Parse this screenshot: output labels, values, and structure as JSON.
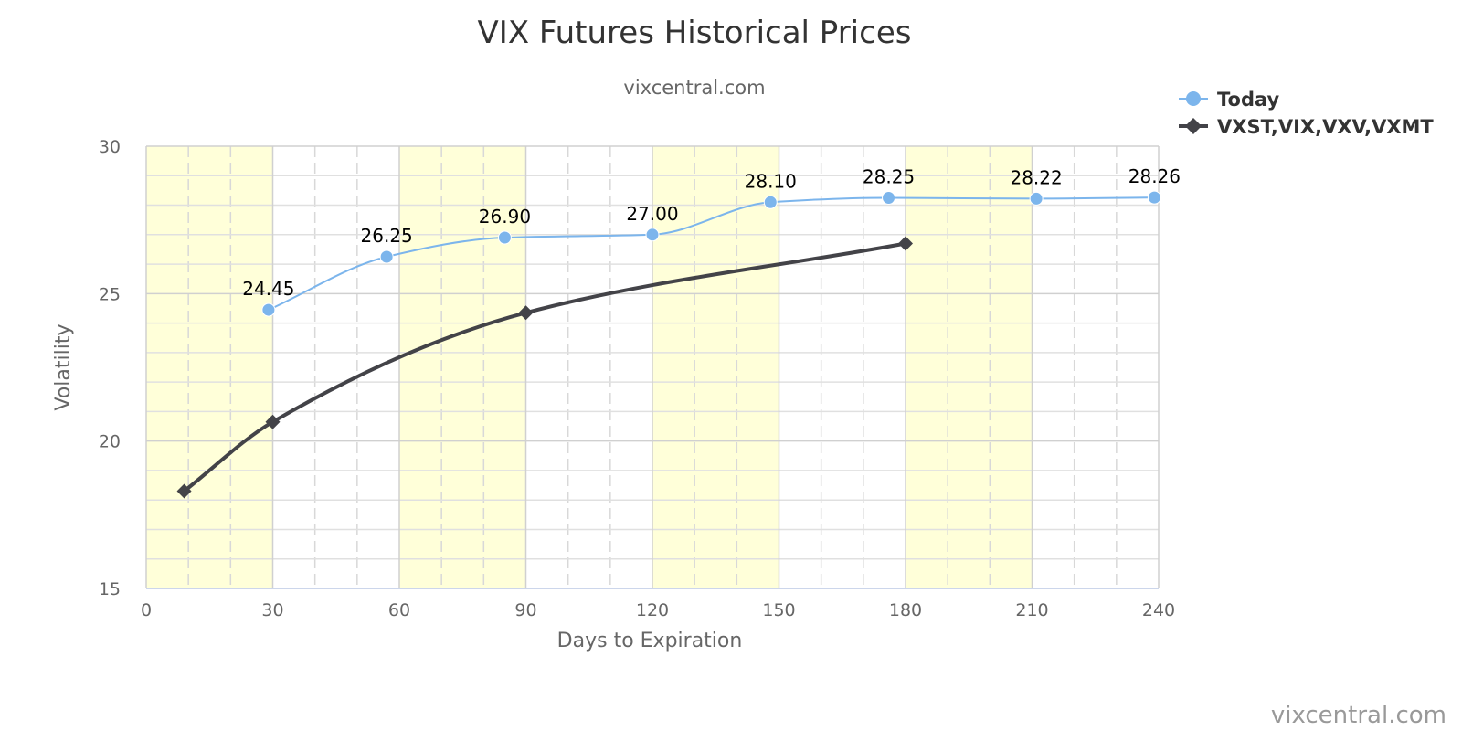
{
  "chart_data": {
    "type": "line",
    "title": "VIX Futures Historical Prices",
    "subtitle": "vixcentral.com",
    "xlabel": "Days to Expiration",
    "ylabel": "Volatility",
    "xlim": [
      0,
      240
    ],
    "ylim": [
      15,
      30
    ],
    "xticks": [
      0,
      30,
      60,
      90,
      120,
      150,
      180,
      210,
      240
    ],
    "yticks": [
      15,
      20,
      25,
      30
    ],
    "x_minor_step": 10,
    "y_minor_step": 1,
    "grid": true,
    "plot_bands": [
      [
        0,
        30
      ],
      [
        60,
        90
      ],
      [
        120,
        150
      ],
      [
        180,
        210
      ]
    ],
    "legend_position": "top-right",
    "series": [
      {
        "name": "Today",
        "color": "#7cb5ec",
        "marker": "circle",
        "data_labels": true,
        "points": [
          {
            "x": 29,
            "y": 24.45,
            "label": "24.45"
          },
          {
            "x": 57,
            "y": 26.25,
            "label": "26.25"
          },
          {
            "x": 85,
            "y": 26.9,
            "label": "26.90"
          },
          {
            "x": 120,
            "y": 27.0,
            "label": "27.00"
          },
          {
            "x": 148,
            "y": 28.1,
            "label": "28.10"
          },
          {
            "x": 176,
            "y": 28.25,
            "label": "28.25"
          },
          {
            "x": 211,
            "y": 28.22,
            "label": "28.22"
          },
          {
            "x": 239,
            "y": 28.26,
            "label": "28.26"
          }
        ]
      },
      {
        "name": "VXST,VIX,VXV,VXMT",
        "color": "#434348",
        "marker": "diamond",
        "data_labels": false,
        "points": [
          {
            "x": 9,
            "y": 18.3
          },
          {
            "x": 30,
            "y": 20.65
          },
          {
            "x": 90,
            "y": 24.35
          },
          {
            "x": 180,
            "y": 26.7
          }
        ]
      }
    ]
  },
  "credit": "vixcentral.com"
}
